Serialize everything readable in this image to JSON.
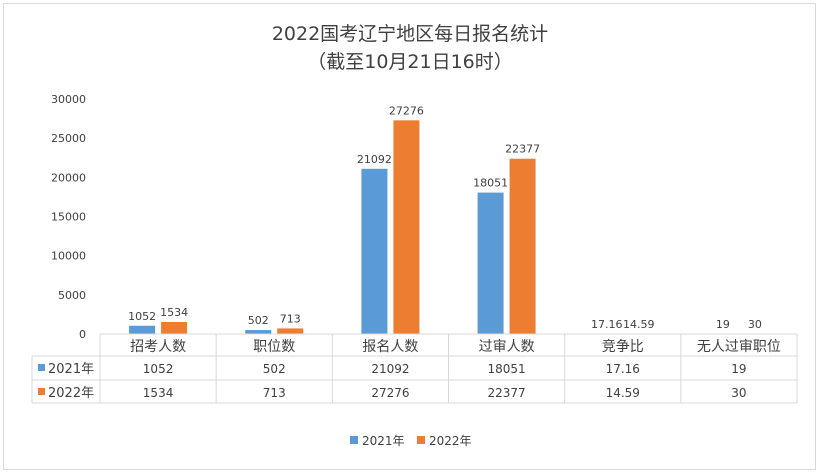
{
  "chart_data": {
    "type": "bar",
    "title": "2022国考辽宁地区每日报名统计",
    "subtitle": "（截至10月21日16时）",
    "categories": [
      "招考人数",
      "职位数",
      "报名人数",
      "过审人数",
      "竞争比",
      "无人过审职位"
    ],
    "series": [
      {
        "name": "2021年",
        "color": "#5b9bd5",
        "values": [
          1052,
          502,
          21092,
          18051,
          17.16,
          19
        ],
        "labels": [
          "1052",
          "502",
          "21092",
          "18051",
          "17.16",
          "19"
        ]
      },
      {
        "name": "2022年",
        "color": "#ed7d31",
        "values": [
          1534,
          713,
          27276,
          22377,
          14.59,
          30
        ],
        "labels": [
          "1534",
          "713",
          "27276",
          "22377",
          "14.59",
          "30"
        ]
      }
    ],
    "ylim": [
      0,
      30000
    ],
    "yticks": [
      "0",
      "5000",
      "10000",
      "15000",
      "20000",
      "25000",
      "30000"
    ],
    "grid": false,
    "legend_position": "bottom",
    "data_table": true
  }
}
